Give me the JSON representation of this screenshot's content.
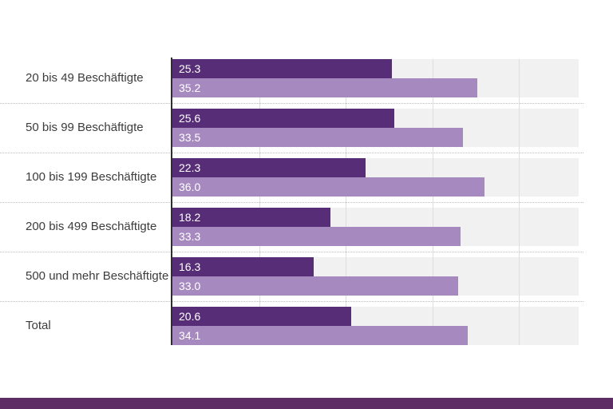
{
  "chart_data": {
    "type": "bar",
    "orientation": "horizontal",
    "title": "",
    "categories": [
      "20 bis 49 Beschäftigte",
      "50 bis 99 Beschäftigte",
      "100 bis 199 Beschäftigte",
      "200 bis 499 Beschäftigte",
      "500 und mehr Beschäftigte",
      "Total"
    ],
    "series": [
      {
        "id": "dark",
        "color": "#562d76",
        "values": [
          25.3,
          25.6,
          22.3,
          18.2,
          16.3,
          20.6
        ]
      },
      {
        "id": "light",
        "color": "#a689bf",
        "values": [
          35.2,
          33.5,
          36.0,
          33.3,
          33.0,
          34.1
        ]
      }
    ],
    "xlim": [
      0,
      46.9
    ],
    "gridlines_x": [
      10,
      20,
      30,
      40
    ],
    "value_labels": "inside-start, one decimal",
    "legend": "none",
    "grid": "vertical lines on light gray plot bands, dotted row separators"
  },
  "style": {
    "background": "#ffffff",
    "plot_band_color": "#f1f1f1",
    "gridline_color": "#dedede",
    "axis_line_color": "#2e2e2e",
    "separator_color": "#bdbdbd",
    "category_text_color": "#3c3c3c",
    "value_text_color": "#ffffff",
    "footer_bar_color": "#5e2d66"
  }
}
